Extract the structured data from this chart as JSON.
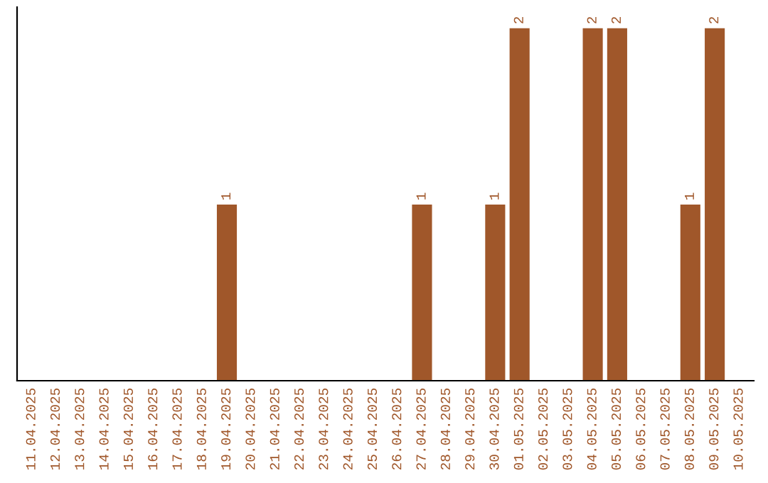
{
  "chart_data": {
    "type": "bar",
    "categories": [
      "11.04.2025",
      "12.04.2025",
      "13.04.2025",
      "14.04.2025",
      "15.04.2025",
      "16.04.2025",
      "17.04.2025",
      "18.04.2025",
      "19.04.2025",
      "20.04.2025",
      "21.04.2025",
      "22.04.2025",
      "23.04.2025",
      "24.04.2025",
      "25.04.2025",
      "26.04.2025",
      "27.04.2025",
      "28.04.2025",
      "29.04.2025",
      "30.04.2025",
      "01.05.2025",
      "02.05.2025",
      "03.05.2025",
      "04.05.2025",
      "05.05.2025",
      "06.05.2025",
      "07.05.2025",
      "08.05.2025",
      "09.05.2025",
      "10.05.2025"
    ],
    "values": [
      0,
      0,
      0,
      0,
      0,
      0,
      0,
      0,
      1,
      0,
      0,
      0,
      0,
      0,
      0,
      0,
      1,
      0,
      0,
      1,
      2,
      0,
      0,
      2,
      2,
      0,
      0,
      1,
      2,
      0
    ],
    "value_labels": [
      null,
      null,
      null,
      null,
      null,
      null,
      null,
      null,
      "1",
      null,
      null,
      null,
      null,
      null,
      null,
      null,
      "1",
      null,
      null,
      "1",
      "2",
      null,
      null,
      "2",
      "2",
      null,
      null,
      "1",
      "2",
      null
    ],
    "color": "#a0572a",
    "grid": false,
    "tick_labels": "x"
  }
}
